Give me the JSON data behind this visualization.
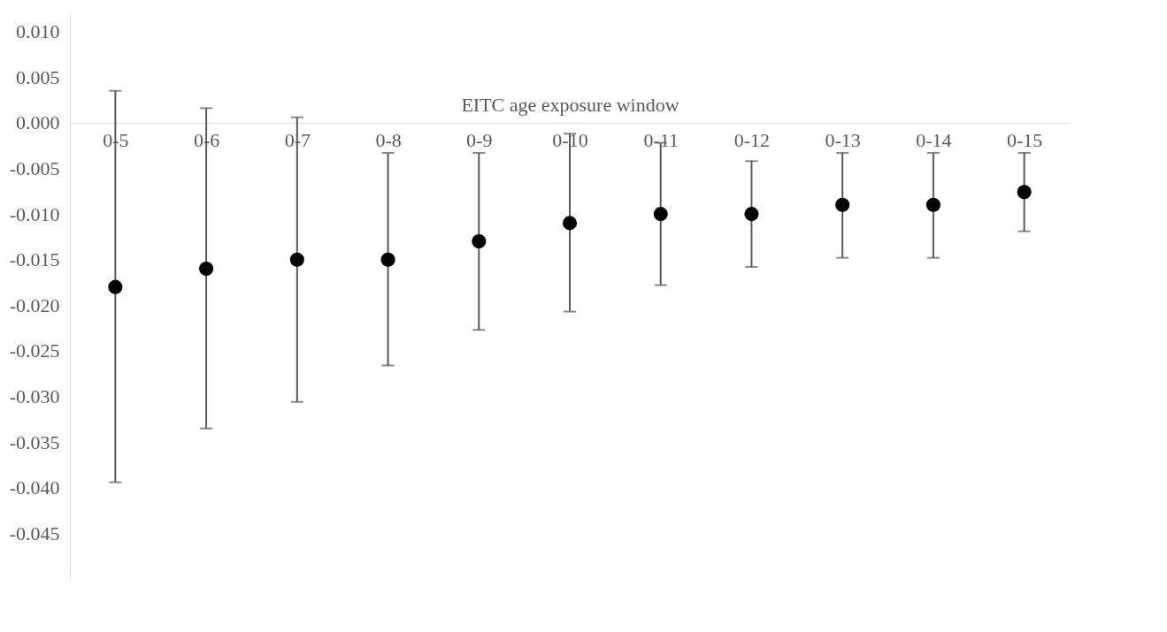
{
  "chart_data": {
    "type": "scatter",
    "xlabel": "EITC age exposure window",
    "categories": [
      "0-5",
      "0-6",
      "0-7",
      "0-8",
      "0-9",
      "0-10",
      "0-11",
      "0-12",
      "0-13",
      "0-14",
      "0-15"
    ],
    "series": [
      {
        "color": "#000000",
        "values": [
          -0.018,
          -0.016,
          -0.015,
          -0.015,
          -0.013,
          -0.011,
          -0.01,
          -0.01,
          -0.009,
          -0.009,
          -0.0076
        ],
        "errors": [
          [
            -0.0394,
            0.0035
          ],
          [
            -0.0335,
            0.0016
          ],
          [
            -0.0306,
            0.0006
          ],
          [
            -0.0266,
            -0.0033
          ],
          [
            -0.0227,
            -0.0033
          ],
          [
            -0.0207,
            -0.0012
          ],
          [
            -0.0178,
            -0.0022
          ],
          [
            -0.0158,
            -0.0042
          ],
          [
            -0.0148,
            -0.0033
          ],
          [
            -0.0148,
            -0.0033
          ],
          [
            -0.0119,
            -0.0033
          ]
        ]
      }
    ],
    "ylim": [
      -0.05,
      0.012
    ],
    "yticks": [
      {
        "value": 0.01,
        "label": "0.010"
      },
      {
        "value": 0.005,
        "label": "0.005"
      },
      {
        "value": 0,
        "label": "0.000"
      },
      {
        "value": -0.005,
        "label": "-0.005"
      },
      {
        "value": -0.01,
        "label": "-0.010"
      },
      {
        "value": -0.015,
        "label": "-0.015"
      },
      {
        "value": -0.02,
        "label": "-0.020"
      },
      {
        "value": -0.025,
        "label": "-0.025"
      },
      {
        "value": -0.03,
        "label": "-0.030"
      },
      {
        "value": -0.035,
        "label": "-0.035"
      },
      {
        "value": -0.04,
        "label": "-0.040"
      },
      {
        "value": -0.045,
        "label": "-0.045"
      }
    ],
    "marker": "circle",
    "grid": false
  }
}
